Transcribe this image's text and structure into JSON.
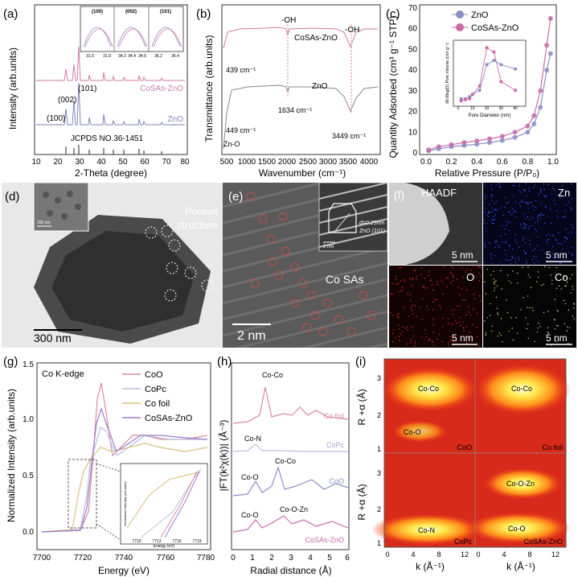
{
  "panels": {
    "a": {
      "letter": "(a)",
      "ylabel": "Intensity (arb.units)",
      "xlabel": "2-Theta (degree)",
      "xticks": [
        "10",
        "20",
        "30",
        "40",
        "50",
        "60",
        "70",
        "80"
      ],
      "series_labels": [
        "CoSAs-ZnO",
        "ZnO"
      ],
      "ref_label": "JCPDS NO.36-1451",
      "peak_labels": [
        "(100)",
        "(002)",
        "(101)"
      ],
      "inset_title": "Intensity (arb.units)",
      "inset_peaks": [
        "(100)",
        "(002)",
        "(101)"
      ],
      "inset_ticks": [
        "31.6",
        "31.8",
        "34.2",
        "34.4",
        "34.6",
        "36.2",
        "36.4"
      ]
    },
    "b": {
      "letter": "(b)",
      "ylabel": "Transmittance (arb.units)",
      "xlabel": "Wavenumber (cm⁻¹)",
      "xticks": [
        "500",
        "1000",
        "1500",
        "2000",
        "2500",
        "3000",
        "3500",
        "4000"
      ],
      "oh_left": "-OH",
      "oh_right": "-OH",
      "series_top": "CoSAs-ZnO",
      "series_bottom": "ZnO",
      "ann_439": "439 cm⁻¹",
      "ann_1634": "1634 cm⁻¹",
      "ann_449": "449 cm⁻¹",
      "ann_zno": "Zn-O",
      "ann_3449": "3449 cm⁻¹"
    },
    "c": {
      "letter": "(c)",
      "ylabel": "Quantity Adsorbed (cm³ g⁻¹ STP)",
      "xlabel": "Relative Pressure (P/P₀)",
      "xticks": [
        "0.0",
        "0.2",
        "0.4",
        "0.6",
        "0.8",
        "1.0"
      ],
      "yticks": [
        "0",
        "10",
        "20",
        "30",
        "40",
        "50",
        "60",
        "70"
      ],
      "legend": [
        "ZnO",
        "CoSAs-ZnO"
      ],
      "colors": {
        "zno": "#8a8fc4",
        "cosas": "#c86aa8"
      },
      "inset_ylabel": "dV/dlog(D) Pore Volume (cm³ g⁻¹)",
      "inset_xlabel": "Pore Diameter (nm)",
      "inset_xticks": [
        "0",
        "10",
        "20",
        "30",
        "40"
      ],
      "inset_yticks": [
        "0.00",
        "0.02",
        "0.04",
        "0.06",
        "0.08",
        "0.10",
        "0.12",
        "0.14"
      ]
    },
    "d": {
      "letter": "(d)",
      "porous": "Porous",
      "structure": "structure",
      "scale": "300 nm",
      "inset_scale": "200 nm"
    },
    "e": {
      "letter": "(e)",
      "cosas": "Co SAs",
      "scale": "2 nm",
      "d_spacing": "d=0.25nm",
      "plane": "ZnO (101)",
      "inset_scale": "2 nm"
    },
    "f": {
      "letter": "(f)",
      "haadf": "HAADF",
      "zn": "Zn",
      "o": "O",
      "co": "Co",
      "scale": "5 nm"
    },
    "g": {
      "letter": "(g)",
      "edge": "Co K-edge",
      "ylabel": "Normalized Intensity (arb.units)",
      "xlabel": "Energy (eV)",
      "xticks": [
        "7700",
        "7720",
        "7740",
        "7760",
        "7780"
      ],
      "yticks": [
        "0.0",
        "0.5",
        "1.0",
        "1.5"
      ],
      "legend": [
        "CoO",
        "CoPc",
        "Co foil",
        "CoSAs-ZnO"
      ],
      "colors": {
        "coo": "#d98aa0",
        "copc": "#b8bfe0",
        "cofoil": "#d8c07a",
        "cosas": "#a07ac8"
      },
      "inset_ylabel": "Normalized Intensity (arb.units)",
      "inset_xlabel": "Energy (eV)",
      "inset_xticks": [
        "7710",
        "7713",
        "7716",
        "7719"
      ]
    },
    "h": {
      "letter": "(h)",
      "ylabel": "|FT(k²χ(k))| (Å⁻³)",
      "xlabel": "Radial distance (Å)",
      "xticks": [
        "0",
        "1",
        "2",
        "3",
        "4",
        "5",
        "6"
      ],
      "labels": [
        "Co foil",
        "CoPc",
        "CoO",
        "CoSAs-ZnO"
      ],
      "ann": [
        "Co-Co",
        "Co-N",
        "Co-O",
        "Co-Co",
        "Co-O",
        "Co-O-Zn"
      ]
    },
    "i": {
      "letter": "(i)",
      "ylabel": "R +α (Å)",
      "xlabel": "k (Å⁻¹)",
      "yticks": [
        "1",
        "2",
        "3"
      ],
      "xticks": [
        "0",
        "4",
        "8",
        "12"
      ],
      "maps": [
        {
          "name": "CoO",
          "peaks": [
            "Co-Co",
            "Co-O"
          ]
        },
        {
          "name": "Co foil",
          "peaks": [
            "Co-Co"
          ]
        },
        {
          "name": "CoPc",
          "peaks": [
            "Co-N"
          ]
        },
        {
          "name": "CoSAs-ZnO",
          "peaks": [
            "Co-O-Zn",
            "Co-O"
          ]
        }
      ]
    }
  },
  "chart_data": [
    {
      "panel": "c",
      "type": "line",
      "x": [
        0.02,
        0.1,
        0.2,
        0.3,
        0.4,
        0.5,
        0.6,
        0.7,
        0.8,
        0.85,
        0.9,
        0.95,
        0.98
      ],
      "series": [
        {
          "name": "ZnO",
          "values": [
            1,
            2,
            3,
            3.6,
            4.2,
            5,
            6,
            7.5,
            10,
            14,
            22,
            40,
            48
          ]
        },
        {
          "name": "CoSAs-ZnO",
          "values": [
            1.5,
            3,
            4,
            5,
            5.8,
            6.8,
            8,
            10,
            13,
            18,
            30,
            52,
            65
          ]
        }
      ],
      "ylim": [
        0,
        70
      ]
    },
    {
      "panel": "c-inset",
      "type": "line",
      "x": [
        2,
        5,
        8,
        10,
        15,
        20,
        25,
        30,
        40
      ],
      "series": [
        {
          "name": "ZnO",
          "values": [
            0.01,
            0.01,
            0.015,
            0.02,
            0.03,
            0.09,
            0.1,
            0.09,
            0.08
          ]
        },
        {
          "name": "CoSAs-ZnO",
          "values": [
            0.005,
            0.008,
            0.01,
            0.02,
            0.04,
            0.13,
            0.12,
            0.05,
            0.03
          ]
        }
      ]
    }
  ]
}
